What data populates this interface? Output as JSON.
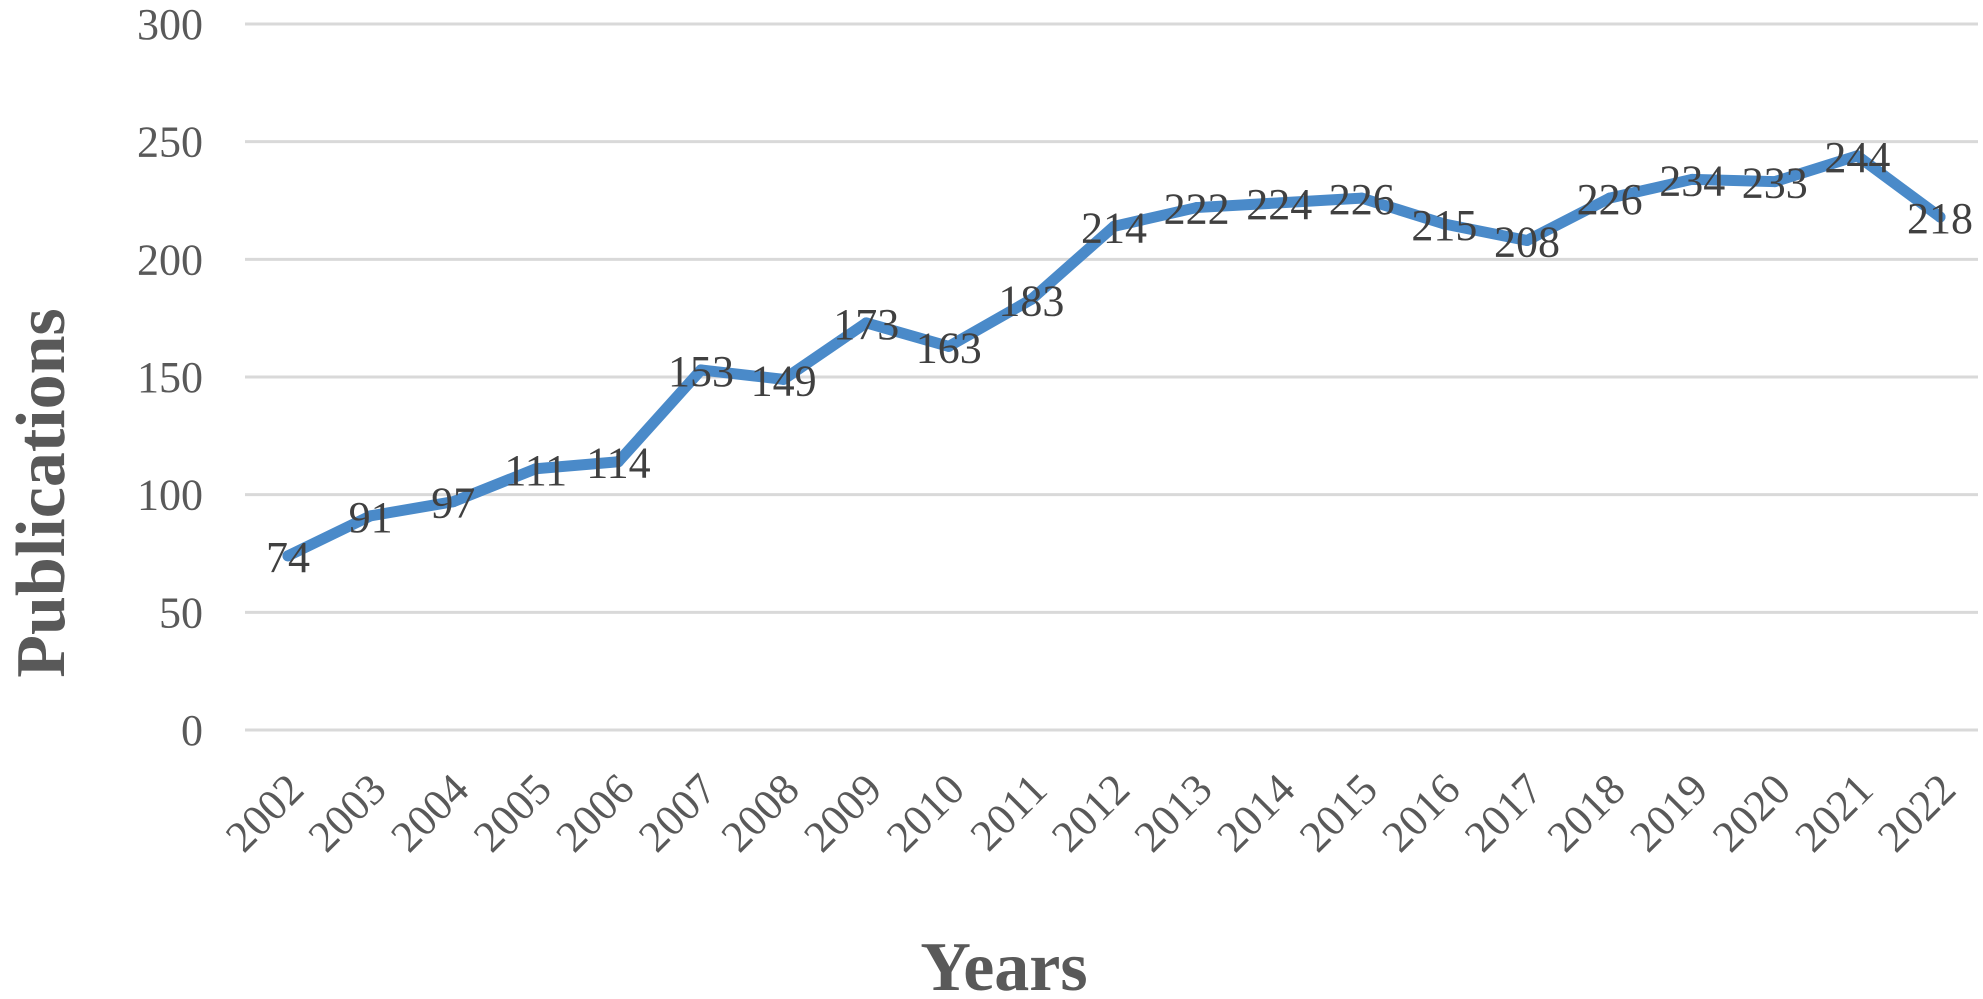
{
  "chart_data": {
    "type": "line",
    "title": "",
    "xlabel": "Years",
    "ylabel": "Publications",
    "categories": [
      "2002",
      "2003",
      "2004",
      "2005",
      "2006",
      "2007",
      "2008",
      "2009",
      "2010",
      "2011",
      "2012",
      "2013",
      "2014",
      "2015",
      "2016",
      "2017",
      "2018",
      "2019",
      "2020",
      "2021",
      "2022"
    ],
    "series": [
      {
        "values": [
          74,
          91,
          97,
          111,
          114,
          153,
          149,
          173,
          163,
          183,
          214,
          222,
          224,
          226,
          215,
          208,
          226,
          234,
          233,
          244,
          218
        ]
      }
    ],
    "ylim": [
      0,
      300
    ],
    "yticks": [
      0,
      50,
      100,
      150,
      200,
      250,
      300
    ],
    "grid": true,
    "legend": "none",
    "show_data_labels": true,
    "colors": {
      "series": "#4a8ac9",
      "grid": "#d9d9d9",
      "text": "#595959"
    }
  }
}
